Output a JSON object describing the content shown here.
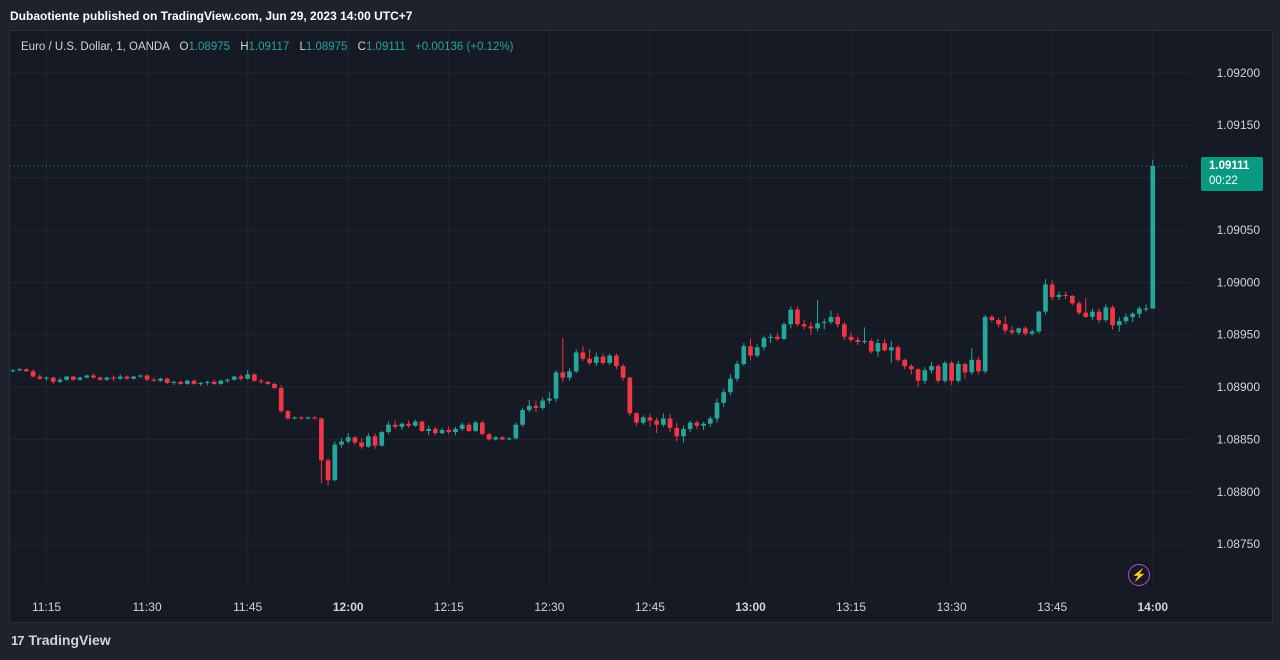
{
  "header": {
    "published_text": "Dubaotiente published on TradingView.com, Jun 29, 2023 14:00 UTC+7"
  },
  "legend": {
    "symbol": "Euro / U.S. Dollar, 1, OANDA",
    "open_label": "O",
    "open": "1.08975",
    "high_label": "H",
    "high": "1.09117",
    "low_label": "L",
    "low": "1.08975",
    "close_label": "C",
    "close": "1.09111",
    "change": "+0.00136 (+0.12%)"
  },
  "price_tag": {
    "price": "1.09111",
    "countdown": "00:22"
  },
  "footer": {
    "brand": "TradingView",
    "logo_text": "17"
  },
  "icons": {
    "alert": "lightning-bolt-icon",
    "brand": "tradingview-logo-icon"
  },
  "colors": {
    "up": "#26a69a",
    "down": "#f23645",
    "background": "#161a25",
    "grid": "#232632",
    "price_tag": "#089981",
    "alert": "#b54fd7"
  },
  "chart_data": {
    "type": "candlestick",
    "symbol": "EURUSD",
    "timeframe": "1m",
    "ylim": [
      1.0871,
      1.0924
    ],
    "y_ticks": [
      "1.09200",
      "1.09150",
      "1.09100",
      "1.09050",
      "1.09000",
      "1.08950",
      "1.08900",
      "1.08850",
      "1.08800",
      "1.08750"
    ],
    "x_ticks": [
      {
        "label": "11:15",
        "minute": 675,
        "bold": false
      },
      {
        "label": "11:30",
        "minute": 690,
        "bold": false
      },
      {
        "label": "11:45",
        "minute": 705,
        "bold": false
      },
      {
        "label": "12:00",
        "minute": 720,
        "bold": true
      },
      {
        "label": "12:15",
        "minute": 735,
        "bold": false
      },
      {
        "label": "12:30",
        "minute": 750,
        "bold": false
      },
      {
        "label": "12:45",
        "minute": 765,
        "bold": false
      },
      {
        "label": "13:00",
        "minute": 780,
        "bold": true
      },
      {
        "label": "13:15",
        "minute": 795,
        "bold": false
      },
      {
        "label": "13:30",
        "minute": 810,
        "bold": false
      },
      {
        "label": "13:45",
        "minute": 825,
        "bold": false
      },
      {
        "label": "14:00",
        "minute": 840,
        "bold": true
      }
    ],
    "x_range_minutes": [
      670,
      846
    ],
    "last_price": 1.09111,
    "candles": [
      [
        670,
        1.08916,
        1.08917,
        1.08914,
        1.08916
      ],
      [
        671,
        1.08916,
        1.08918,
        1.08915,
        1.08917
      ],
      [
        672,
        1.08917,
        1.08918,
        1.08915,
        1.08915
      ],
      [
        673,
        1.08915,
        1.08917,
        1.08909,
        1.0891
      ],
      [
        674,
        1.0891,
        1.08912,
        1.08907,
        1.08908
      ],
      [
        675,
        1.08908,
        1.0891,
        1.08906,
        1.08909
      ],
      [
        676,
        1.08909,
        1.0891,
        1.08903,
        1.08905
      ],
      [
        677,
        1.08905,
        1.08909,
        1.08904,
        1.08907
      ],
      [
        678,
        1.08907,
        1.08911,
        1.08906,
        1.0891
      ],
      [
        679,
        1.0891,
        1.08911,
        1.08906,
        1.08907
      ],
      [
        680,
        1.08907,
        1.0891,
        1.08906,
        1.08909
      ],
      [
        681,
        1.08909,
        1.08912,
        1.08908,
        1.08911
      ],
      [
        682,
        1.08911,
        1.08913,
        1.08908,
        1.08909
      ],
      [
        683,
        1.08909,
        1.0891,
        1.08906,
        1.08907
      ],
      [
        684,
        1.08907,
        1.0891,
        1.08906,
        1.08909
      ],
      [
        685,
        1.08909,
        1.08911,
        1.08906,
        1.08908
      ],
      [
        686,
        1.08908,
        1.08912,
        1.08907,
        1.0891
      ],
      [
        687,
        1.0891,
        1.08911,
        1.08907,
        1.08908
      ],
      [
        688,
        1.08908,
        1.08911,
        1.08907,
        1.0891
      ],
      [
        689,
        1.0891,
        1.08912,
        1.08909,
        1.08911
      ],
      [
        690,
        1.08911,
        1.08912,
        1.08906,
        1.08907
      ],
      [
        691,
        1.08907,
        1.08909,
        1.08905,
        1.08906
      ],
      [
        692,
        1.08906,
        1.08909,
        1.08905,
        1.08908
      ],
      [
        693,
        1.08908,
        1.08909,
        1.08903,
        1.08904
      ],
      [
        694,
        1.08904,
        1.08906,
        1.08902,
        1.08905
      ],
      [
        695,
        1.08905,
        1.08906,
        1.08902,
        1.08903
      ],
      [
        696,
        1.08903,
        1.08907,
        1.08902,
        1.08906
      ],
      [
        697,
        1.08906,
        1.08907,
        1.08902,
        1.08903
      ],
      [
        698,
        1.08903,
        1.08905,
        1.08901,
        1.08904
      ],
      [
        699,
        1.08904,
        1.08906,
        1.08902,
        1.08905
      ],
      [
        700,
        1.08905,
        1.08907,
        1.08902,
        1.08903
      ],
      [
        701,
        1.08903,
        1.08907,
        1.08902,
        1.08906
      ],
      [
        702,
        1.08906,
        1.08908,
        1.08904,
        1.08907
      ],
      [
        703,
        1.08907,
        1.08911,
        1.08906,
        1.0891
      ],
      [
        704,
        1.0891,
        1.08912,
        1.08906,
        1.08908
      ],
      [
        705,
        1.08908,
        1.08916,
        1.08907,
        1.08912
      ],
      [
        706,
        1.08912,
        1.08913,
        1.08905,
        1.08906
      ],
      [
        707,
        1.08906,
        1.08908,
        1.08903,
        1.08905
      ],
      [
        708,
        1.08905,
        1.08906,
        1.08902,
        1.08903
      ],
      [
        709,
        1.08903,
        1.08904,
        1.08898,
        1.08899
      ],
      [
        710,
        1.08899,
        1.08902,
        1.08875,
        1.08877
      ],
      [
        711,
        1.08877,
        1.08878,
        1.08869,
        1.0887
      ],
      [
        712,
        1.0887,
        1.08872,
        1.08869,
        1.08871
      ],
      [
        713,
        1.08871,
        1.08872,
        1.08869,
        1.0887
      ],
      [
        714,
        1.0887,
        1.08872,
        1.08869,
        1.08871
      ],
      [
        715,
        1.08871,
        1.08872,
        1.08869,
        1.0887
      ],
      [
        716,
        1.0887,
        1.08871,
        1.08808,
        1.0883
      ],
      [
        717,
        1.0883,
        1.08832,
        1.08806,
        1.08811
      ],
      [
        718,
        1.08811,
        1.08848,
        1.0881,
        1.08845
      ],
      [
        719,
        1.08845,
        1.08851,
        1.08842,
        1.08848
      ],
      [
        720,
        1.08848,
        1.08856,
        1.08846,
        1.08852
      ],
      [
        721,
        1.08852,
        1.08853,
        1.08845,
        1.08847
      ],
      [
        722,
        1.08847,
        1.08851,
        1.08841,
        1.08843
      ],
      [
        723,
        1.08843,
        1.08856,
        1.08842,
        1.08853
      ],
      [
        724,
        1.08853,
        1.08856,
        1.08841,
        1.08844
      ],
      [
        725,
        1.08844,
        1.08858,
        1.08843,
        1.08857
      ],
      [
        726,
        1.08857,
        1.08867,
        1.08855,
        1.08864
      ],
      [
        727,
        1.08864,
        1.08868,
        1.0886,
        1.08862
      ],
      [
        728,
        1.08862,
        1.08866,
        1.08859,
        1.08865
      ],
      [
        729,
        1.08865,
        1.08868,
        1.08861,
        1.08863
      ],
      [
        730,
        1.08863,
        1.08869,
        1.08862,
        1.08867
      ],
      [
        731,
        1.08867,
        1.08868,
        1.08857,
        1.08858
      ],
      [
        732,
        1.08858,
        1.08863,
        1.08854,
        1.0886
      ],
      [
        733,
        1.0886,
        1.08862,
        1.08854,
        1.08856
      ],
      [
        734,
        1.08856,
        1.08861,
        1.08855,
        1.08859
      ],
      [
        735,
        1.08859,
        1.08862,
        1.08855,
        1.08857
      ],
      [
        736,
        1.08857,
        1.08862,
        1.08854,
        1.0886
      ],
      [
        737,
        1.0886,
        1.08866,
        1.08858,
        1.08864
      ],
      [
        738,
        1.08864,
        1.08866,
        1.08857,
        1.08858
      ],
      [
        739,
        1.08858,
        1.08868,
        1.08857,
        1.08866
      ],
      [
        740,
        1.08866,
        1.08868,
        1.08854,
        1.08855
      ],
      [
        741,
        1.08855,
        1.08856,
        1.08849,
        1.0885
      ],
      [
        742,
        1.0885,
        1.08853,
        1.08849,
        1.08852
      ],
      [
        743,
        1.08852,
        1.08853,
        1.08849,
        1.0885
      ],
      [
        744,
        1.0885,
        1.08852,
        1.08849,
        1.08851
      ],
      [
        745,
        1.08851,
        1.08866,
        1.0885,
        1.08864
      ],
      [
        746,
        1.08864,
        1.0888,
        1.08862,
        1.08878
      ],
      [
        747,
        1.08878,
        1.08888,
        1.08876,
        1.08882
      ],
      [
        748,
        1.08882,
        1.08887,
        1.08876,
        1.0888
      ],
      [
        749,
        1.0888,
        1.0889,
        1.08878,
        1.08887
      ],
      [
        750,
        1.08887,
        1.08895,
        1.08884,
        1.08889
      ],
      [
        751,
        1.08889,
        1.08916,
        1.08886,
        1.08914
      ],
      [
        752,
        1.08914,
        1.08947,
        1.08905,
        1.08909
      ],
      [
        753,
        1.08909,
        1.08918,
        1.08906,
        1.08915
      ],
      [
        754,
        1.08915,
        1.08936,
        1.08913,
        1.08933
      ],
      [
        755,
        1.08933,
        1.08939,
        1.08925,
        1.08927
      ],
      [
        756,
        1.08927,
        1.08936,
        1.08921,
        1.08923
      ],
      [
        757,
        1.08923,
        1.08933,
        1.0892,
        1.08929
      ],
      [
        758,
        1.08929,
        1.08932,
        1.08921,
        1.08923
      ],
      [
        759,
        1.08923,
        1.08932,
        1.08921,
        1.0893
      ],
      [
        760,
        1.0893,
        1.08932,
        1.08917,
        1.0892
      ],
      [
        761,
        1.0892,
        1.08922,
        1.08906,
        1.08909
      ],
      [
        762,
        1.08909,
        1.0891,
        1.08872,
        1.08875
      ],
      [
        763,
        1.08875,
        1.08876,
        1.08863,
        1.08866
      ],
      [
        764,
        1.08866,
        1.08873,
        1.08864,
        1.08871
      ],
      [
        765,
        1.08871,
        1.08874,
        1.08862,
        1.08868
      ],
      [
        766,
        1.08868,
        1.08871,
        1.08856,
        1.08864
      ],
      [
        767,
        1.08864,
        1.08875,
        1.08862,
        1.0887
      ],
      [
        768,
        1.0887,
        1.08874,
        1.08857,
        1.08861
      ],
      [
        769,
        1.08861,
        1.08866,
        1.08848,
        1.08853
      ],
      [
        770,
        1.08853,
        1.08863,
        1.08847,
        1.0886
      ],
      [
        771,
        1.0886,
        1.08868,
        1.08857,
        1.08866
      ],
      [
        772,
        1.08866,
        1.08868,
        1.0886,
        1.08863
      ],
      [
        773,
        1.08863,
        1.08867,
        1.08859,
        1.08865
      ],
      [
        774,
        1.08865,
        1.08872,
        1.08862,
        1.0887
      ],
      [
        775,
        1.0887,
        1.08889,
        1.08866,
        1.08885
      ],
      [
        776,
        1.08885,
        1.08898,
        1.08881,
        1.08895
      ],
      [
        777,
        1.08895,
        1.08912,
        1.08892,
        1.08908
      ],
      [
        778,
        1.08908,
        1.08925,
        1.08905,
        1.08922
      ],
      [
        779,
        1.08922,
        1.08942,
        1.0892,
        1.08939
      ],
      [
        780,
        1.08939,
        1.08946,
        1.08926,
        1.0893
      ],
      [
        781,
        1.0893,
        1.08941,
        1.08928,
        1.08938
      ],
      [
        782,
        1.08938,
        1.08949,
        1.08935,
        1.08947
      ],
      [
        783,
        1.08947,
        1.08951,
        1.08942,
        1.08948
      ],
      [
        784,
        1.08948,
        1.08952,
        1.08944,
        1.08946
      ],
      [
        785,
        1.08946,
        1.08962,
        1.08945,
        1.0896
      ],
      [
        786,
        1.0896,
        1.08977,
        1.08956,
        1.08974
      ],
      [
        787,
        1.08974,
        1.08977,
        1.08958,
        1.0896
      ],
      [
        788,
        1.0896,
        1.08964,
        1.08955,
        1.08958
      ],
      [
        789,
        1.08958,
        1.08962,
        1.0895,
        1.08956
      ],
      [
        790,
        1.08956,
        1.08983,
        1.08953,
        1.08961
      ],
      [
        791,
        1.08961,
        1.08965,
        1.08955,
        1.08962
      ],
      [
        792,
        1.08962,
        1.08973,
        1.0896,
        1.08967
      ],
      [
        793,
        1.08967,
        1.0897,
        1.08957,
        1.0896
      ],
      [
        794,
        1.0896,
        1.08962,
        1.08945,
        1.08948
      ],
      [
        795,
        1.08948,
        1.08952,
        1.08943,
        1.08945
      ],
      [
        796,
        1.08945,
        1.08948,
        1.0894,
        1.08943
      ],
      [
        797,
        1.08943,
        1.08957,
        1.08941,
        1.08944
      ],
      [
        798,
        1.08944,
        1.08946,
        1.08932,
        1.08934
      ],
      [
        799,
        1.08934,
        1.08946,
        1.08929,
        1.08942
      ],
      [
        800,
        1.08942,
        1.08946,
        1.08934,
        1.08935
      ],
      [
        801,
        1.08935,
        1.08944,
        1.08923,
        1.08938
      ],
      [
        802,
        1.08938,
        1.0894,
        1.08924,
        1.08926
      ],
      [
        803,
        1.08926,
        1.08927,
        1.08917,
        1.0892
      ],
      [
        804,
        1.0892,
        1.08922,
        1.08912,
        1.08917
      ],
      [
        805,
        1.08917,
        1.08918,
        1.089,
        1.08906
      ],
      [
        806,
        1.08906,
        1.08919,
        1.08903,
        1.08916
      ],
      [
        807,
        1.08916,
        1.08924,
        1.08913,
        1.0892
      ],
      [
        808,
        1.0892,
        1.08922,
        1.08904,
        1.08906
      ],
      [
        809,
        1.08906,
        1.08925,
        1.08904,
        1.08923
      ],
      [
        810,
        1.08923,
        1.08925,
        1.08902,
        1.08906
      ],
      [
        811,
        1.08906,
        1.08925,
        1.08904,
        1.08922
      ],
      [
        812,
        1.08922,
        1.08923,
        1.08908,
        1.08914
      ],
      [
        813,
        1.08914,
        1.08937,
        1.08912,
        1.08926
      ],
      [
        814,
        1.08926,
        1.08929,
        1.08912,
        1.08915
      ],
      [
        815,
        1.08915,
        1.08969,
        1.08913,
        1.08967
      ],
      [
        816,
        1.08967,
        1.08969,
        1.08962,
        1.08964
      ],
      [
        817,
        1.08964,
        1.08966,
        1.08957,
        1.0896
      ],
      [
        818,
        1.0896,
        1.08968,
        1.08951,
        1.08954
      ],
      [
        819,
        1.08954,
        1.08958,
        1.0895,
        1.08952
      ],
      [
        820,
        1.08952,
        1.08957,
        1.0895,
        1.08956
      ],
      [
        821,
        1.08956,
        1.08958,
        1.08949,
        1.08951
      ],
      [
        822,
        1.08951,
        1.08955,
        1.08949,
        1.08953
      ],
      [
        823,
        1.08953,
        1.08973,
        1.08951,
        1.08972
      ],
      [
        824,
        1.08972,
        1.09003,
        1.08969,
        1.08998
      ],
      [
        825,
        1.08998,
        1.09002,
        1.08983,
        1.08986
      ],
      [
        826,
        1.08986,
        1.08991,
        1.08983,
        1.08988
      ],
      [
        827,
        1.08988,
        1.08991,
        1.08984,
        1.08987
      ],
      [
        828,
        1.08987,
        1.08988,
        1.08978,
        1.0898
      ],
      [
        829,
        1.0898,
        1.08982,
        1.08969,
        1.08971
      ],
      [
        830,
        1.08971,
        1.08985,
        1.08966,
        1.08967
      ],
      [
        831,
        1.08967,
        1.08975,
        1.08964,
        1.08972
      ],
      [
        832,
        1.08972,
        1.08975,
        1.08961,
        1.08964
      ],
      [
        833,
        1.08964,
        1.08979,
        1.08962,
        1.08976
      ],
      [
        834,
        1.08976,
        1.08978,
        1.08955,
        1.08959
      ],
      [
        835,
        1.08959,
        1.08967,
        1.08953,
        1.08963
      ],
      [
        836,
        1.08963,
        1.0897,
        1.0896,
        1.08967
      ],
      [
        837,
        1.08967,
        1.08972,
        1.08962,
        1.0897
      ],
      [
        838,
        1.0897,
        1.08977,
        1.08966,
        1.08975
      ],
      [
        839,
        1.08975,
        1.08979,
        1.08972,
        1.08975
      ],
      [
        840,
        1.08975,
        1.09117,
        1.08975,
        1.09111
      ]
    ]
  }
}
